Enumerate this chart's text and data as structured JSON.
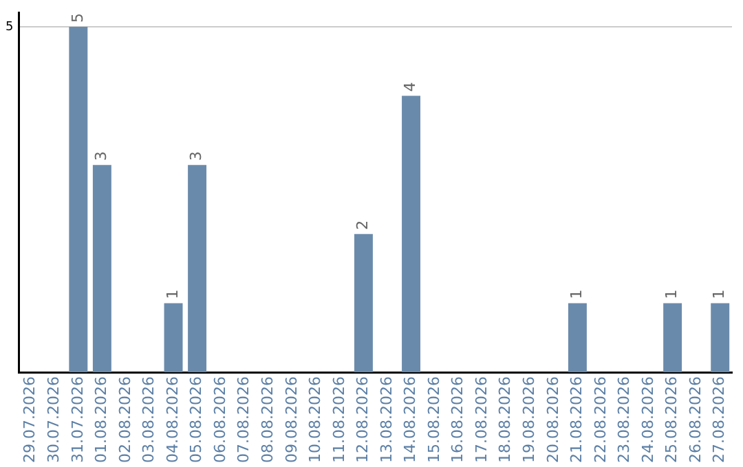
{
  "chart_data": {
    "type": "bar",
    "categories": [
      "29.07.2026",
      "30.07.2026",
      "31.07.2026",
      "01.08.2026",
      "02.08.2026",
      "03.08.2026",
      "04.08.2026",
      "05.08.2026",
      "06.08.2026",
      "07.08.2026",
      "08.08.2026",
      "09.08.2026",
      "10.08.2026",
      "11.08.2026",
      "12.08.2026",
      "13.08.2026",
      "14.08.2026",
      "15.08.2026",
      "16.08.2026",
      "17.08.2026",
      "18.08.2026",
      "19.08.2026",
      "20.08.2026",
      "21.08.2026",
      "22.08.2026",
      "23.08.2026",
      "24.08.2026",
      "25.08.2026",
      "26.08.2026",
      "27.08.2026"
    ],
    "values": [
      null,
      null,
      5,
      3,
      null,
      null,
      1,
      3,
      null,
      null,
      null,
      null,
      null,
      null,
      2,
      null,
      4,
      null,
      null,
      null,
      null,
      null,
      null,
      1,
      null,
      null,
      null,
      1,
      null,
      1
    ],
    "color": "#6a8aab",
    "ylim": [
      0,
      5.2
    ],
    "yticks": [
      5
    ],
    "grid": "y",
    "data_labels": true,
    "legend": false
  }
}
